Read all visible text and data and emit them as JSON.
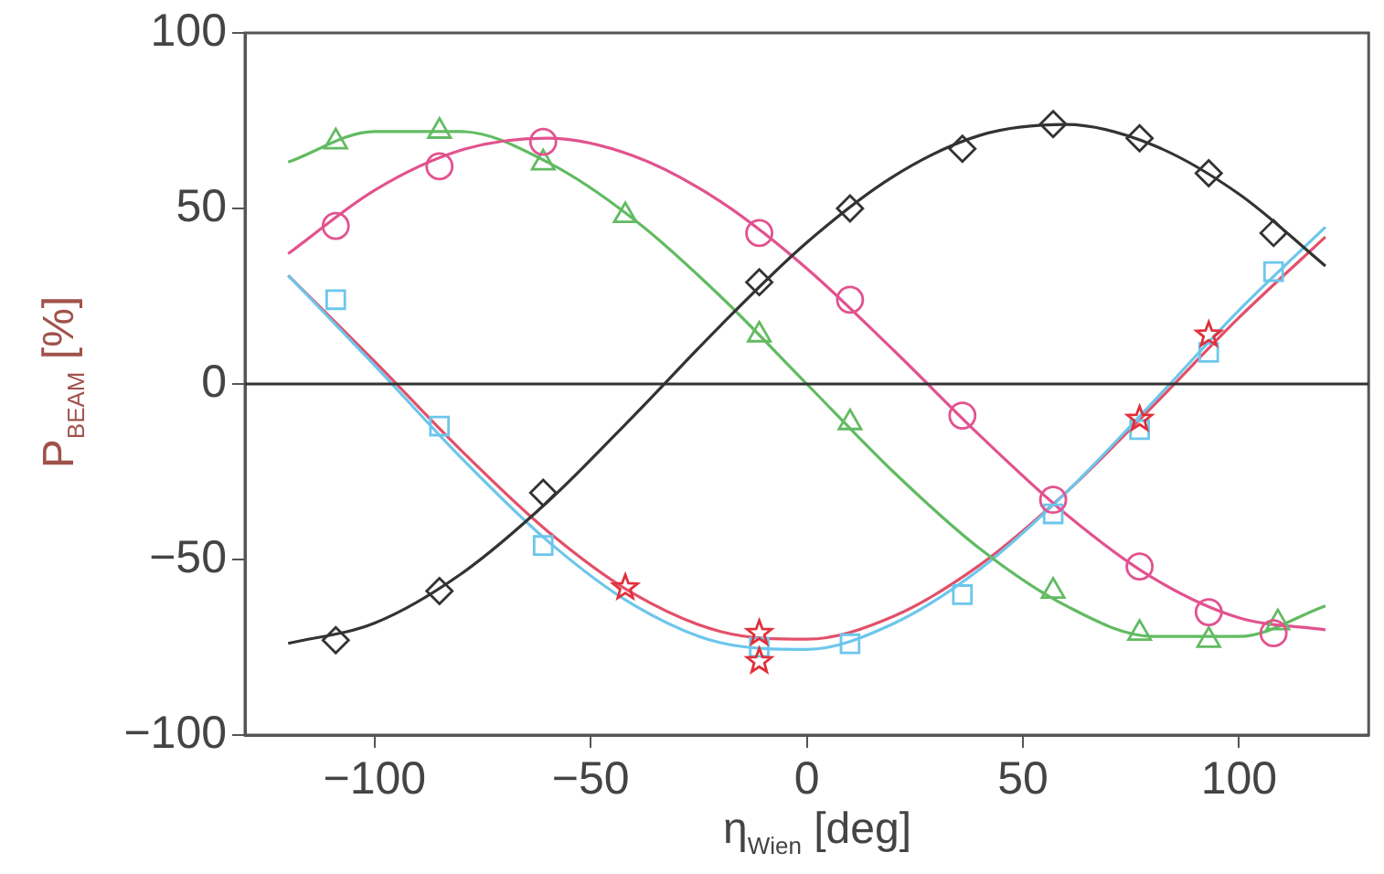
{
  "chart_data": {
    "type": "scatter",
    "xlabel": "η$_{Wien}$ [deg]",
    "ylabel": "P$_{BEAM}$ [%]",
    "xlim": [
      -130,
      130
    ],
    "ylim": [
      -100,
      100
    ],
    "xticks": [
      {
        "value": -100,
        "label": "−100"
      },
      {
        "value": -50,
        "label": "−50"
      },
      0,
      50,
      100
    ],
    "yticks": [
      {
        "value": -100,
        "label": "−100"
      },
      {
        "value": -50,
        "label": "−50"
      },
      0,
      50,
      100
    ],
    "grid": false,
    "legend": false,
    "ref_lines": [
      {
        "axis": "y",
        "value": 0,
        "color": "#333333"
      }
    ],
    "series": [
      {
        "type": "line",
        "marker": "none",
        "color": "#333333",
        "x": [
          -120,
          -100,
          -80,
          -60,
          -40,
          -20,
          0,
          20,
          40,
          60,
          80,
          100,
          120
        ],
        "values": [
          -73.9,
          -68.1,
          -54.1,
          -33.6,
          -9.0,
          16.6,
          40.3,
          59.1,
          70.8,
          73.9,
          68.1,
          54.1,
          33.6
        ]
      },
      {
        "type": "line",
        "marker": "none",
        "color": "#e2528f",
        "x": [
          -120,
          -100,
          -80,
          -60,
          -40,
          -20,
          0,
          20,
          40,
          60,
          80,
          100,
          120
        ],
        "values": [
          37.1,
          55.2,
          66.6,
          70.0,
          64.9,
          52.0,
          32.9,
          9.7,
          -14.6,
          -37.1,
          -55.2,
          -66.6,
          -70.0
        ]
      },
      {
        "type": "line",
        "marker": "none",
        "color": "#62bb62",
        "x": [
          -120,
          -100,
          -80,
          -60,
          -40,
          -20,
          0,
          20,
          40,
          60,
          80,
          100,
          120
        ],
        "values": [
          63.2,
          71.9,
          71.9,
          63.2,
          46.9,
          25.0,
          0,
          -25.0,
          -46.9,
          -63.2,
          -71.9,
          -71.9,
          -63.2
        ]
      },
      {
        "type": "line",
        "marker": "none",
        "color": "#6cc6ec",
        "x": [
          -120,
          -100,
          -80,
          -60,
          -40,
          -20,
          0,
          20,
          40,
          60,
          80,
          100,
          120
        ],
        "values": [
          30.9,
          5.3,
          -21.0,
          -44.7,
          -63.0,
          -73.7,
          -75.6,
          -68.3,
          -52.8,
          -30.9,
          -5.3,
          21.0,
          44.7
        ]
      },
      {
        "type": "line",
        "marker": "none",
        "color": "#e2506a",
        "x": [
          -120,
          -100,
          -80,
          -60,
          -40,
          -20,
          0,
          20,
          40,
          60,
          80,
          100,
          120
        ],
        "values": [
          30.9,
          6.4,
          -18.9,
          -41.9,
          -59.8,
          -70.5,
          -72.7,
          -66.2,
          -51.6,
          -30.9,
          -6.4,
          18.9,
          41.9
        ]
      },
      {
        "marker": "diamond",
        "color": "#333333",
        "x": [
          -109,
          -85,
          -61,
          -11,
          10,
          36,
          57,
          77,
          93,
          108
        ],
        "values": [
          -73,
          -59,
          -31,
          29,
          50,
          67,
          74,
          70,
          60,
          43
        ]
      },
      {
        "marker": "circle",
        "color": "#e2528f",
        "x": [
          -109,
          -85,
          -61,
          -11,
          10,
          36,
          57,
          77,
          93,
          108
        ],
        "values": [
          45,
          62,
          69,
          43,
          24,
          -9,
          -33,
          -52,
          -65,
          -71
        ]
      },
      {
        "marker": "triangle",
        "color": "#62bb62",
        "x": [
          -109,
          -85,
          -61,
          -42,
          -11,
          10,
          57,
          77,
          93,
          109
        ],
        "values": [
          69,
          72,
          63,
          48,
          14,
          -11,
          -59,
          -71,
          -73,
          -68
        ]
      },
      {
        "marker": "square",
        "color": "#6cc6ec",
        "x": [
          -109,
          -85,
          -61,
          -11,
          10,
          36,
          57,
          77,
          93,
          108
        ],
        "values": [
          24,
          -12,
          -46,
          -75,
          -74,
          -60,
          -37,
          -13,
          9,
          32
        ]
      },
      {
        "marker": "star",
        "color": "#e0303a",
        "x": [
          -42,
          -11,
          -11,
          77,
          93
        ],
        "values": [
          -58,
          -71,
          -79,
          -10,
          14
        ]
      }
    ]
  }
}
